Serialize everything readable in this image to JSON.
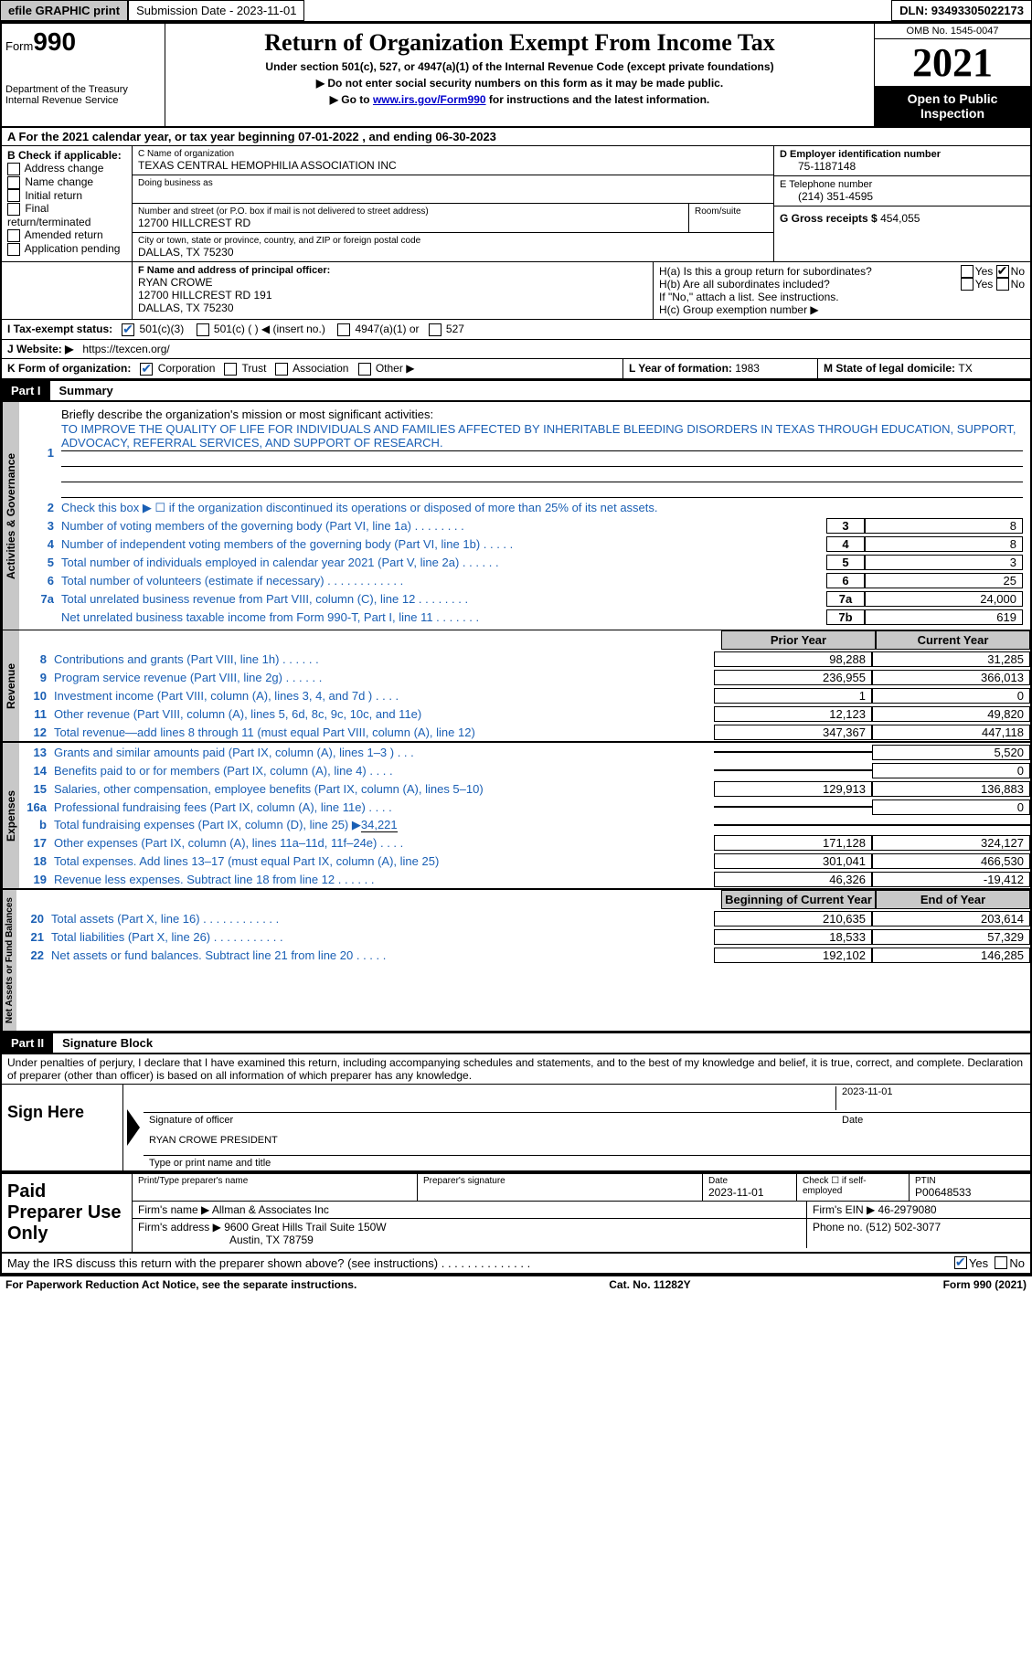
{
  "topbar": {
    "efile": "efile GRAPHIC print",
    "submission_label": "Submission Date - 2023-11-01",
    "dln_label": "DLN: 93493305022173"
  },
  "header": {
    "form_small": "Form",
    "form_big": "990",
    "dept": "Department of the Treasury",
    "irs": "Internal Revenue Service",
    "title": "Return of Organization Exempt From Income Tax",
    "sub1": "Under section 501(c), 527, or 4947(a)(1) of the Internal Revenue Code (except private foundations)",
    "sub2": "▶ Do not enter social security numbers on this form as it may be made public.",
    "sub3_pre": "▶ Go to ",
    "sub3_link": "www.irs.gov/Form990",
    "sub3_post": " for instructions and the latest information.",
    "omb": "OMB No. 1545-0047",
    "year": "2021",
    "inspect": "Open to Public Inspection"
  },
  "sectionA": {
    "a_line": "A For the 2021 calendar year, or tax year beginning 07-01-2022     , and ending 06-30-2023",
    "b_label": "B Check if applicable:",
    "b_opts": [
      "Address change",
      "Name change",
      "Initial return",
      "Final return/terminated",
      "Amended return",
      "Application pending"
    ],
    "c_label": "C Name of organization",
    "c_name": "TEXAS CENTRAL HEMOPHILIA ASSOCIATION INC",
    "dba": "Doing business as",
    "street_label": "Number and street (or P.O. box if mail is not delivered to street address)",
    "street": "12700 HILLCREST RD",
    "room_label": "Room/suite",
    "city_label": "City or town, state or province, country, and ZIP or foreign postal code",
    "city": "DALLAS, TX   75230",
    "d_label": "D Employer identification number",
    "d_val": "75-1187148",
    "e_label": "E Telephone number",
    "e_val": "(214) 351-4595",
    "g_label": "G Gross receipts $ ",
    "g_val": "454,055",
    "f_label": "F  Name and address of principal officer:",
    "f_name": "RYAN CROWE",
    "f_addr1": "12700 HILLCREST RD 191",
    "f_addr2": "DALLAS, TX   75230",
    "ha_label": "H(a)  Is this a group return for subordinates?",
    "hb_label": "H(b)  Are all subordinates included?",
    "hb_note": "If \"No,\" attach a list. See instructions.",
    "hc_label": "H(c)  Group exemption number ▶",
    "yes": "Yes",
    "no": "No",
    "i_label": "I   Tax-exempt status:",
    "i_501c3": "501(c)(3)",
    "i_501c": "501(c) (   ) ◀ (insert no.)",
    "i_4947": "4947(a)(1) or",
    "i_527": "527",
    "j_label": "J   Website: ▶",
    "j_val": "https://texcen.org/",
    "k_label": "K Form of organization:",
    "k_corp": "Corporation",
    "k_trust": "Trust",
    "k_assoc": "Association",
    "k_other": "Other ▶",
    "l_label": "L Year of formation: ",
    "l_val": "1983",
    "m_label": "M State of legal domicile: ",
    "m_val": "TX"
  },
  "part1": {
    "header": "Part I",
    "title": "Summary",
    "tab_activities": "Activities & Governance",
    "tab_revenue": "Revenue",
    "tab_expenses": "Expenses",
    "tab_netassets": "Net Assets or Fund Balances",
    "line1_label": "Briefly describe the organization's mission or most significant activities:",
    "line1_text": "TO IMPROVE THE QUALITY OF LIFE FOR INDIVIDUALS AND FAMILIES AFFECTED BY INHERITABLE BLEEDING DISORDERS IN TEXAS THROUGH EDUCATION, SUPPORT, ADVOCACY, REFERRAL SERVICES, AND SUPPORT OF RESEARCH.",
    "line2": "Check this box ▶ ☐  if the organization discontinued its operations or disposed of more than 25% of its net assets.",
    "lines_a": [
      {
        "n": "3",
        "d": "Number of voting members of the governing body (Part VI, line 1a)   .    .    .    .    .    .    .    .",
        "b": "3",
        "v": "8"
      },
      {
        "n": "4",
        "d": "Number of independent voting members of the governing body (Part VI, line 1b)   .    .    .    .    .",
        "b": "4",
        "v": "8"
      },
      {
        "n": "5",
        "d": "Total number of individuals employed in calendar year 2021 (Part V, line 2a)   .    .    .    .    .    .",
        "b": "5",
        "v": "3"
      },
      {
        "n": "6",
        "d": "Total number of volunteers (estimate if necessary)    .    .    .    .    .    .    .    .    .    .    .    .",
        "b": "6",
        "v": "25"
      },
      {
        "n": "7a",
        "d": "Total unrelated business revenue from Part VIII, column (C), line 12    .    .    .    .    .    .    .    .",
        "b": "7a",
        "v": "24,000"
      },
      {
        "n": "",
        "d": "Net unrelated business taxable income from Form 990-T, Part I, line 11   .    .    .    .    .    .    .",
        "b": "7b",
        "v": "619"
      }
    ],
    "col_prior": "Prior Year",
    "col_current": "Current Year",
    "lines_rev": [
      {
        "n": "8",
        "d": "Contributions and grants (Part VIII, line 1h)   .    .    .    .    .    .",
        "p": "98,288",
        "c": "31,285"
      },
      {
        "n": "9",
        "d": "Program service revenue (Part VIII, line 2g)   .    .    .    .    .    .",
        "p": "236,955",
        "c": "366,013"
      },
      {
        "n": "10",
        "d": "Investment income (Part VIII, column (A), lines 3, 4, and 7d )   .    .    .    .",
        "p": "1",
        "c": "0"
      },
      {
        "n": "11",
        "d": "Other revenue (Part VIII, column (A), lines 5, 6d, 8c, 9c, 10c, and 11e)",
        "p": "12,123",
        "c": "49,820"
      },
      {
        "n": "12",
        "d": "Total revenue—add lines 8 through 11 (must equal Part VIII, column (A), line 12)",
        "p": "347,367",
        "c": "447,118"
      }
    ],
    "lines_exp": [
      {
        "n": "13",
        "d": "Grants and similar amounts paid (Part IX, column (A), lines 1–3 )   .    .    .",
        "p": "",
        "c": "5,520"
      },
      {
        "n": "14",
        "d": "Benefits paid to or for members (Part IX, column (A), line 4)   .    .    .    .",
        "p": "",
        "c": "0"
      },
      {
        "n": "15",
        "d": "Salaries, other compensation, employee benefits (Part IX, column (A), lines 5–10)",
        "p": "129,913",
        "c": "136,883"
      },
      {
        "n": "16a",
        "d": "Professional fundraising fees (Part IX, column (A), line 11e)   .    .    .    .",
        "p": "",
        "c": "0"
      }
    ],
    "line16b_pre": "Total fundraising expenses (Part IX, column (D), line 25) ▶",
    "line16b_val": "34,221",
    "lines_exp2": [
      {
        "n": "17",
        "d": "Other expenses (Part IX, column (A), lines 11a–11d, 11f–24e)   .    .    .    .",
        "p": "171,128",
        "c": "324,127"
      },
      {
        "n": "18",
        "d": "Total expenses. Add lines 13–17 (must equal Part IX, column (A), line 25)",
        "p": "301,041",
        "c": "466,530"
      },
      {
        "n": "19",
        "d": "Revenue less expenses. Subtract line 18 from line 12   .    .    .    .    .    .",
        "p": "46,326",
        "c": "-19,412"
      }
    ],
    "col_begin": "Beginning of Current Year",
    "col_end": "End of Year",
    "lines_net": [
      {
        "n": "20",
        "d": "Total assets (Part X, line 16)   .    .    .    .    .    .    .    .    .    .    .    .",
        "p": "210,635",
        "c": "203,614"
      },
      {
        "n": "21",
        "d": "Total liabilities (Part X, line 26)   .    .    .    .    .    .    .    .    .    .    .",
        "p": "18,533",
        "c": "57,329"
      },
      {
        "n": "22",
        "d": "Net assets or fund balances. Subtract line 21 from line 20   .    .    .    .    .",
        "p": "192,102",
        "c": "146,285"
      }
    ]
  },
  "part2": {
    "header": "Part II",
    "title": "Signature Block",
    "penalty": "Under penalties of perjury, I declare that I have examined this return, including accompanying schedules and statements, and to the best of my knowledge and belief, it is true, correct, and complete. Declaration of preparer (other than officer) is based on all information of which preparer has any knowledge.",
    "sign_here": "Sign Here",
    "sig_officer": "Signature of officer",
    "sig_date": "2023-11-01",
    "date_label": "Date",
    "officer_name": "RYAN CROWE PRESIDENT",
    "type_name": "Type or print name and title",
    "paid_prep": "Paid Preparer Use Only",
    "prep_name_label": "Print/Type preparer's name",
    "prep_sig_label": "Preparer's signature",
    "prep_date_label": "Date",
    "prep_date": "2023-11-01",
    "prep_check": "Check ☐ if self-employed",
    "ptin_label": "PTIN",
    "ptin": "P00648533",
    "firm_name_label": "Firm's name      ▶ ",
    "firm_name": "Allman & Associates Inc",
    "firm_ein_label": "Firm's EIN ▶ ",
    "firm_ein": "46-2979080",
    "firm_addr_label": "Firm's address ▶ ",
    "firm_addr1": "9600 Great Hills Trail Suite 150W",
    "firm_addr2": "Austin, TX   78759",
    "phone_label": "Phone no. ",
    "phone": "(512) 502-3077",
    "discuss": "May the IRS discuss this return with the preparer shown above? (see instructions)    .    .    .    .    .    .    .    .    .    .    .    .    .    .",
    "yes": "Yes",
    "no": "No"
  },
  "footer": {
    "left": "For Paperwork Reduction Act Notice, see the separate instructions.",
    "mid": "Cat. No. 11282Y",
    "right": "Form 990 (2021)"
  }
}
